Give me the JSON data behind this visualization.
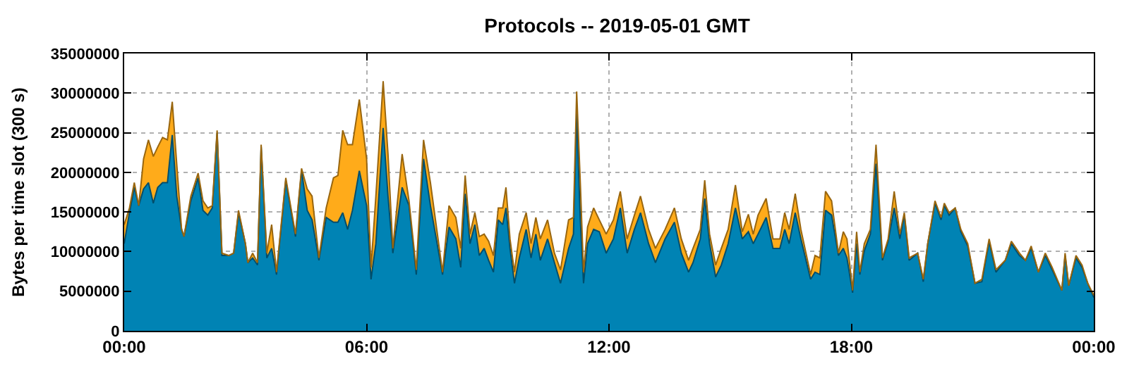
{
  "chart_data": {
    "type": "area",
    "stacked": true,
    "title": "Protocols -- 2019-05-01 GMT",
    "ylabel": "Bytes per time slot (300 s)",
    "x": [
      0,
      0.13,
      0.25,
      0.36,
      0.48,
      0.6,
      0.72,
      0.83,
      0.95,
      1.07,
      1.19,
      1.3,
      1.42,
      1.48,
      1.65,
      1.83,
      1.95,
      2.07,
      2.18,
      2.3,
      2.42,
      2.59,
      2.71,
      2.83,
      3.0,
      3.06,
      3.18,
      3.3,
      3.39,
      3.53,
      3.65,
      3.77,
      4.0,
      4.24,
      4.39,
      4.53,
      4.65,
      4.82,
      5.0,
      5.18,
      5.29,
      5.41,
      5.53,
      5.65,
      5.82,
      6.0,
      6.11,
      6.23,
      6.41,
      6.53,
      6.65,
      6.88,
      7.05,
      7.23,
      7.41,
      7.58,
      7.88,
      8.04,
      8.21,
      8.33,
      8.44,
      8.56,
      8.68,
      8.79,
      8.91,
      9.02,
      9.14,
      9.26,
      9.37,
      9.45,
      9.55,
      9.66,
      9.78,
      9.95,
      10.07,
      10.19,
      10.3,
      10.48,
      10.65,
      10.8,
      11.0,
      11.12,
      11.2,
      11.29,
      11.37,
      11.47,
      11.62,
      11.76,
      11.93,
      12.11,
      12.28,
      12.45,
      12.63,
      12.78,
      12.98,
      13.15,
      13.39,
      13.62,
      13.79,
      13.97,
      14.08,
      14.26,
      14.37,
      14.49,
      14.64,
      14.78,
      14.95,
      15.13,
      15.3,
      15.45,
      15.57,
      15.69,
      15.89,
      16.06,
      16.23,
      16.35,
      16.46,
      16.61,
      16.75,
      16.99,
      17.1,
      17.22,
      17.36,
      17.51,
      17.68,
      17.8,
      17.89,
      18.03,
      18.13,
      18.21,
      18.32,
      18.47,
      18.61,
      18.77,
      18.91,
      19.06,
      19.2,
      19.31,
      19.43,
      19.64,
      19.78,
      19.89,
      20.07,
      20.22,
      20.3,
      20.42,
      20.57,
      20.71,
      20.88,
      21.06,
      21.23,
      21.41,
      21.58,
      21.81,
      21.96,
      22.16,
      22.31,
      22.45,
      22.63,
      22.8,
      22.97,
      23.21,
      23.29,
      23.38,
      23.56,
      23.71,
      23.85,
      24.0
    ],
    "series": [
      {
        "color": "#0083b4",
        "values": [
          11000000,
          14900000,
          18100000,
          15800000,
          17900000,
          18700000,
          16100000,
          18100000,
          18700000,
          18700000,
          24700000,
          17000000,
          12800000,
          11900000,
          16400000,
          19300000,
          15200000,
          14600000,
          15500000,
          25000000,
          9500000,
          9500000,
          9800000,
          14900000,
          11000000,
          8600000,
          9200000,
          8300000,
          23200000,
          9200000,
          10400000,
          7100000,
          19000000,
          11900000,
          20200000,
          15200000,
          14000000,
          8900000,
          14300000,
          13700000,
          13700000,
          14900000,
          12800000,
          15200000,
          20200000,
          15800000,
          6500000,
          11000000,
          25600000,
          17000000,
          9800000,
          18100000,
          15800000,
          7100000,
          21700000,
          15800000,
          7100000,
          13100000,
          11600000,
          8000000,
          17300000,
          11000000,
          13400000,
          9500000,
          10400000,
          8900000,
          7400000,
          14000000,
          13400000,
          15500000,
          10400000,
          6000000,
          9200000,
          12800000,
          9200000,
          12200000,
          8900000,
          11600000,
          8600000,
          6000000,
          10400000,
          12200000,
          27400000,
          14000000,
          6000000,
          11000000,
          12800000,
          12500000,
          9800000,
          11600000,
          15500000,
          9800000,
          12800000,
          14900000,
          11000000,
          8600000,
          11600000,
          13700000,
          9800000,
          7400000,
          8600000,
          11600000,
          16700000,
          11000000,
          6800000,
          8300000,
          11000000,
          15500000,
          11600000,
          12500000,
          11000000,
          12200000,
          14300000,
          10400000,
          10400000,
          12800000,
          11000000,
          14900000,
          11600000,
          6500000,
          7400000,
          7100000,
          15200000,
          14600000,
          9500000,
          10400000,
          9200000,
          4800000,
          11000000,
          7100000,
          10100000,
          12200000,
          21100000,
          8900000,
          11300000,
          15500000,
          11600000,
          14600000,
          8900000,
          9800000,
          6200000,
          11000000,
          16100000,
          14000000,
          15800000,
          14600000,
          15500000,
          12500000,
          10700000,
          6000000,
          6200000,
          11300000,
          7400000,
          8900000,
          11000000,
          9500000,
          8900000,
          10400000,
          7400000,
          9500000,
          7700000,
          5100000,
          9500000,
          5700000,
          9200000,
          8000000,
          6000000,
          4200000
        ]
      },
      {
        "color": "#ffab1a",
        "values": [
          2400000,
          600000,
          600000,
          0,
          3800000,
          5400000,
          5900000,
          5100000,
          5700000,
          5400000,
          4200000,
          4100000,
          0,
          0,
          600000,
          600000,
          1200000,
          900000,
          300000,
          300000,
          300000,
          0,
          0,
          300000,
          0,
          0,
          600000,
          300000,
          300000,
          600000,
          3000000,
          300000,
          300000,
          300000,
          300000,
          2700000,
          3000000,
          300000,
          1200000,
          5600000,
          5900000,
          10400000,
          10700000,
          8300000,
          9000000,
          5900000,
          1500000,
          6000000,
          5900000,
          5300000,
          600000,
          4200000,
          600000,
          600000,
          2400000,
          2900000,
          300000,
          2700000,
          2700000,
          2400000,
          2300000,
          1200000,
          1500000,
          2400000,
          1800000,
          2400000,
          2100000,
          1500000,
          2100000,
          2600000,
          1200000,
          1400000,
          3000000,
          2100000,
          1800000,
          2100000,
          2700000,
          2400000,
          1200000,
          1700000,
          3600000,
          2100000,
          2800000,
          4700000,
          1400000,
          2100000,
          2700000,
          1500000,
          2400000,
          2400000,
          2100000,
          1800000,
          1800000,
          2100000,
          1800000,
          1800000,
          1200000,
          1800000,
          1800000,
          1500000,
          1800000,
          1200000,
          2300000,
          1200000,
          1500000,
          2100000,
          1800000,
          2900000,
          900000,
          2200000,
          1200000,
          2400000,
          2400000,
          1200000,
          1200000,
          2100000,
          1800000,
          2400000,
          1200000,
          600000,
          2100000,
          2100000,
          2400000,
          1800000,
          300000,
          2100000,
          2400000,
          300000,
          1500000,
          300000,
          900000,
          600000,
          2400000,
          300000,
          300000,
          2100000,
          600000,
          300000,
          300000,
          0,
          300000,
          0,
          300000,
          300000,
          300000,
          300000,
          0,
          300000,
          300000,
          0,
          300000,
          300000,
          300000,
          0,
          300000,
          300000,
          0,
          300000,
          0,
          300000,
          300000,
          0,
          300000,
          0,
          300000,
          300000,
          0,
          300000
        ]
      }
    ],
    "xlim": [
      0,
      24
    ],
    "xticks": [
      {
        "value": 0,
        "label": "00:00"
      },
      {
        "value": 6,
        "label": "06:00"
      },
      {
        "value": 12,
        "label": "12:00"
      },
      {
        "value": 18,
        "label": "18:00"
      },
      {
        "value": 24,
        "label": "00:00"
      }
    ],
    "ylim": [
      0,
      35000000
    ],
    "yticks": [
      0,
      5000000,
      10000000,
      15000000,
      20000000,
      25000000,
      30000000,
      35000000
    ],
    "grid": true
  }
}
